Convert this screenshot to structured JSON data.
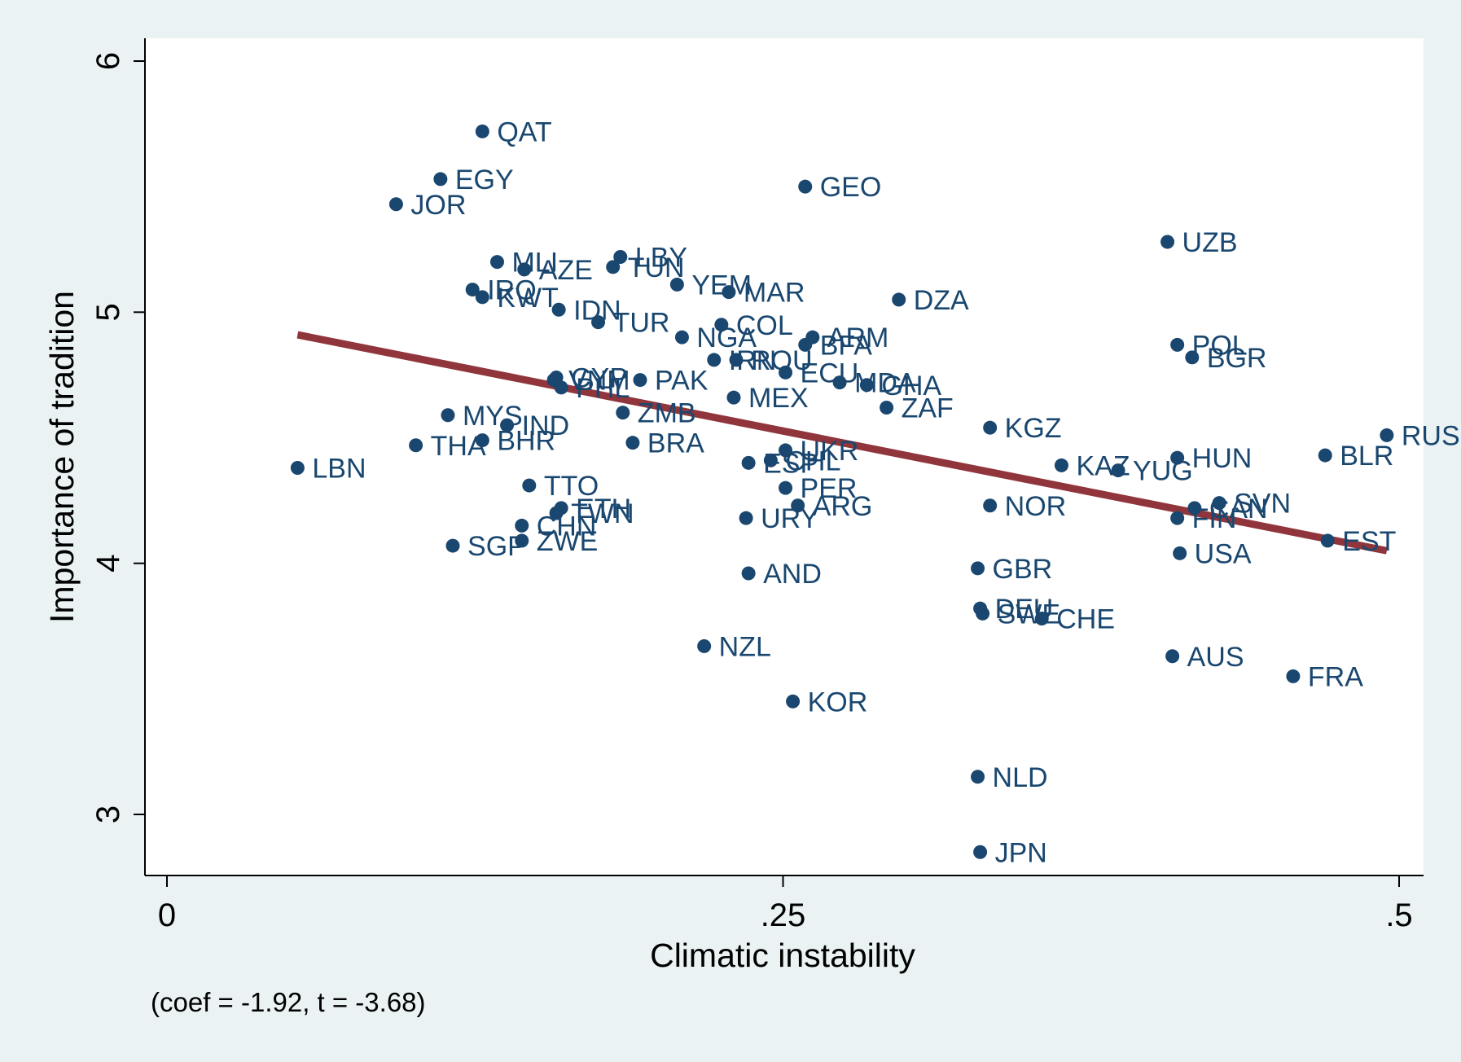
{
  "chart_data": {
    "type": "scatter",
    "xlabel": "Climatic instability",
    "ylabel": "Importance of tradition",
    "xlim": [
      -0.01,
      0.51
    ],
    "ylim": [
      2.75,
      6.1
    ],
    "x_ticks": [
      {
        "value": 0,
        "label": "0"
      },
      {
        "value": 0.25,
        "label": ".25"
      },
      {
        "value": 0.5,
        "label": ".5"
      }
    ],
    "y_ticks": [
      {
        "value": 3,
        "label": "3"
      },
      {
        "value": 4,
        "label": "4"
      },
      {
        "value": 5,
        "label": "5"
      },
      {
        "value": 6,
        "label": "6"
      }
    ],
    "grid": false,
    "note": "(coef = -1.92, t = -3.68)",
    "colors": {
      "background": "#eaf2f3",
      "plot_area": "#ffffff",
      "marker": "#1a476f",
      "fit_line": "#90353b",
      "axis": "#000000"
    },
    "fit_line": {
      "x": [
        0.053,
        0.495
      ],
      "y": [
        4.91,
        4.05
      ]
    },
    "points": [
      {
        "label": "QAT",
        "x": 0.128,
        "y": 5.72
      },
      {
        "label": "EGY",
        "x": 0.111,
        "y": 5.53
      },
      {
        "label": "JOR",
        "x": 0.093,
        "y": 5.43
      },
      {
        "label": "GEO",
        "x": 0.259,
        "y": 5.5
      },
      {
        "label": "UZB",
        "x": 0.406,
        "y": 5.28
      },
      {
        "label": "MLI",
        "x": 0.134,
        "y": 5.2
      },
      {
        "label": "AZE",
        "x": 0.145,
        "y": 5.17
      },
      {
        "label": "LBY",
        "x": 0.184,
        "y": 5.22
      },
      {
        "label": "TUN",
        "x": 0.181,
        "y": 5.18
      },
      {
        "label": "YEM",
        "x": 0.207,
        "y": 5.11
      },
      {
        "label": "MAR",
        "x": 0.228,
        "y": 5.08
      },
      {
        "label": "IRQ",
        "x": 0.124,
        "y": 5.09
      },
      {
        "label": "KWT",
        "x": 0.128,
        "y": 5.06
      },
      {
        "label": "IDN",
        "x": 0.159,
        "y": 5.01
      },
      {
        "label": "DZA",
        "x": 0.297,
        "y": 5.05
      },
      {
        "label": "TUR",
        "x": 0.175,
        "y": 4.96
      },
      {
        "label": "COL",
        "x": 0.225,
        "y": 4.95
      },
      {
        "label": "NGA",
        "x": 0.209,
        "y": 4.9
      },
      {
        "label": "ARM",
        "x": 0.262,
        "y": 4.9
      },
      {
        "label": "BFA",
        "x": 0.259,
        "y": 4.87
      },
      {
        "label": "POL",
        "x": 0.41,
        "y": 4.87
      },
      {
        "label": "BGR",
        "x": 0.416,
        "y": 4.82
      },
      {
        "label": "IRN",
        "x": 0.222,
        "y": 4.81
      },
      {
        "label": "ROU",
        "x": 0.231,
        "y": 4.81
      },
      {
        "label": "ECU",
        "x": 0.251,
        "y": 4.76
      },
      {
        "label": "CYP",
        "x": 0.158,
        "y": 4.74
      },
      {
        "label": "VNM",
        "x": 0.157,
        "y": 4.73
      },
      {
        "label": "PHL",
        "x": 0.16,
        "y": 4.7
      },
      {
        "label": "PAK",
        "x": 0.192,
        "y": 4.73
      },
      {
        "label": "MDA",
        "x": 0.273,
        "y": 4.72
      },
      {
        "label": "GHA",
        "x": 0.284,
        "y": 4.71
      },
      {
        "label": "MEX",
        "x": 0.23,
        "y": 4.66
      },
      {
        "label": "ZAF",
        "x": 0.292,
        "y": 4.62
      },
      {
        "label": "ZMB",
        "x": 0.185,
        "y": 4.6
      },
      {
        "label": "MYS",
        "x": 0.114,
        "y": 4.59
      },
      {
        "label": "IND",
        "x": 0.138,
        "y": 4.55
      },
      {
        "label": "KGZ",
        "x": 0.334,
        "y": 4.54
      },
      {
        "label": "RUS",
        "x": 0.495,
        "y": 4.51
      },
      {
        "label": "THA",
        "x": 0.101,
        "y": 4.47
      },
      {
        "label": "BHR",
        "x": 0.128,
        "y": 4.49
      },
      {
        "label": "BRA",
        "x": 0.189,
        "y": 4.48
      },
      {
        "label": "UKR",
        "x": 0.251,
        "y": 4.45
      },
      {
        "label": "BLR",
        "x": 0.47,
        "y": 4.43
      },
      {
        "label": "HUN",
        "x": 0.41,
        "y": 4.42
      },
      {
        "label": "ESP",
        "x": 0.236,
        "y": 4.4
      },
      {
        "label": "CHL",
        "x": 0.245,
        "y": 4.41
      },
      {
        "label": "KAZ",
        "x": 0.363,
        "y": 4.39
      },
      {
        "label": "YUG",
        "x": 0.386,
        "y": 4.37
      },
      {
        "label": "LBN",
        "x": 0.053,
        "y": 4.38
      },
      {
        "label": "TTO",
        "x": 0.147,
        "y": 4.31
      },
      {
        "label": "PER",
        "x": 0.251,
        "y": 4.3
      },
      {
        "label": "ETH",
        "x": 0.16,
        "y": 4.22
      },
      {
        "label": "TWN",
        "x": 0.158,
        "y": 4.2
      },
      {
        "label": "ARG",
        "x": 0.256,
        "y": 4.23
      },
      {
        "label": "NOR",
        "x": 0.334,
        "y": 4.23
      },
      {
        "label": "SVN",
        "x": 0.427,
        "y": 4.24
      },
      {
        "label": "CAN",
        "x": 0.417,
        "y": 4.22
      },
      {
        "label": "FIN",
        "x": 0.41,
        "y": 4.18
      },
      {
        "label": "URY",
        "x": 0.235,
        "y": 4.18
      },
      {
        "label": "CHN",
        "x": 0.144,
        "y": 4.15
      },
      {
        "label": "ZWE",
        "x": 0.144,
        "y": 4.09
      },
      {
        "label": "SGP",
        "x": 0.116,
        "y": 4.07
      },
      {
        "label": "EST",
        "x": 0.471,
        "y": 4.09
      },
      {
        "label": "USA",
        "x": 0.411,
        "y": 4.04
      },
      {
        "label": "GBR",
        "x": 0.329,
        "y": 3.98
      },
      {
        "label": "AND",
        "x": 0.236,
        "y": 3.96
      },
      {
        "label": "DEU",
        "x": 0.33,
        "y": 3.82
      },
      {
        "label": "SWE",
        "x": 0.331,
        "y": 3.8
      },
      {
        "label": "CHE",
        "x": 0.355,
        "y": 3.78
      },
      {
        "label": "NZL",
        "x": 0.218,
        "y": 3.67
      },
      {
        "label": "AUS",
        "x": 0.408,
        "y": 3.63
      },
      {
        "label": "FRA",
        "x": 0.457,
        "y": 3.55
      },
      {
        "label": "KOR",
        "x": 0.254,
        "y": 3.45
      },
      {
        "label": "NLD",
        "x": 0.329,
        "y": 3.15
      },
      {
        "label": "JPN",
        "x": 0.33,
        "y": 2.85
      }
    ]
  }
}
